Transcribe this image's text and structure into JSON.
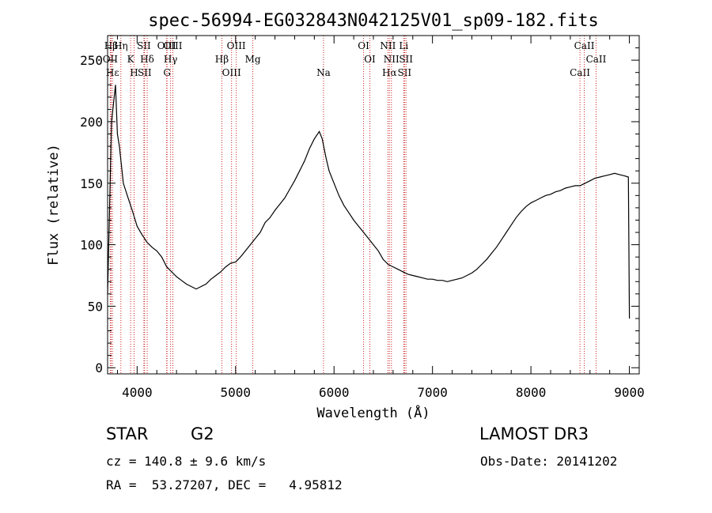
{
  "chart_data": {
    "type": "line",
    "title": "spec-56994-EG032843N042125V01_sp09-182.fits",
    "xlabel": "Wavelength (Å)",
    "ylabel": "Flux (relative)",
    "xlim": [
      3700,
      9100
    ],
    "ylim": [
      -5,
      270
    ],
    "xticks": [
      4000,
      5000,
      6000,
      7000,
      8000,
      9000
    ],
    "yticks": [
      0,
      50,
      100,
      150,
      200,
      250
    ],
    "grid": false,
    "legend": "none",
    "series": [
      {
        "color": "#000000",
        "x": [
          3700,
          3720,
          3740,
          3760,
          3780,
          3800,
          3820,
          3840,
          3860,
          3880,
          3900,
          3950,
          4000,
          4050,
          4100,
          4150,
          4200,
          4250,
          4300,
          4350,
          4400,
          4450,
          4500,
          4550,
          4600,
          4650,
          4700,
          4750,
          4800,
          4850,
          4900,
          4950,
          5000,
          5050,
          5100,
          5150,
          5200,
          5250,
          5300,
          5350,
          5400,
          5450,
          5500,
          5550,
          5600,
          5650,
          5700,
          5750,
          5800,
          5850,
          5880,
          5900,
          5920,
          5950,
          6000,
          6050,
          6100,
          6150,
          6200,
          6250,
          6300,
          6350,
          6400,
          6450,
          6500,
          6550,
          6600,
          6650,
          6700,
          6750,
          6800,
          6850,
          6900,
          6950,
          7000,
          7050,
          7100,
          7150,
          7200,
          7250,
          7300,
          7350,
          7400,
          7450,
          7500,
          7550,
          7600,
          7650,
          7700,
          7750,
          7800,
          7850,
          7900,
          7950,
          8000,
          8050,
          8100,
          8150,
          8200,
          8250,
          8300,
          8350,
          8400,
          8450,
          8500,
          8550,
          8600,
          8650,
          8700,
          8750,
          8800,
          8850,
          8900,
          8950,
          8990,
          9000
        ],
        "y": [
          60,
          130,
          200,
          215,
          230,
          190,
          180,
          165,
          150,
          145,
          140,
          128,
          115,
          108,
          102,
          98,
          95,
          90,
          82,
          78,
          74,
          71,
          68,
          66,
          64,
          66,
          68,
          72,
          75,
          78,
          82,
          85,
          86,
          90,
          95,
          100,
          105,
          110,
          118,
          122,
          128,
          133,
          138,
          145,
          152,
          160,
          168,
          178,
          186,
          192,
          186,
          178,
          170,
          160,
          150,
          140,
          132,
          126,
          120,
          115,
          110,
          105,
          100,
          95,
          88,
          84,
          82,
          80,
          78,
          76,
          75,
          74,
          73,
          72,
          72,
          71,
          71,
          70,
          71,
          72,
          73,
          75,
          77,
          80,
          84,
          88,
          93,
          98,
          104,
          110,
          116,
          122,
          127,
          131,
          134,
          136,
          138,
          140,
          141,
          143,
          144,
          146,
          147,
          148,
          148,
          150,
          152,
          154,
          155,
          156,
          157,
          158,
          157,
          156,
          155,
          40
        ]
      }
    ],
    "lines": [
      {
        "name": "Hβ",
        "x": 3736
      },
      {
        "name": "OII",
        "x": 3727
      },
      {
        "name": "Hε",
        "x": 3750
      },
      {
        "name": "Hη",
        "x": 3835
      },
      {
        "name": "K",
        "x": 3934
      },
      {
        "name": "H",
        "x": 3969
      },
      {
        "name": "SII",
        "x": 4069
      },
      {
        "name": "Hδ",
        "x": 4102
      },
      {
        "name": "SII",
        "x": 4076
      },
      {
        "name": "OIII",
        "x": 4300
      },
      {
        "name": "Hγ",
        "x": 4340
      },
      {
        "name": "G",
        "x": 4304
      },
      {
        "name": "OIII",
        "x": 4363
      },
      {
        "name": "Hβ",
        "x": 4861
      },
      {
        "name": "OIII",
        "x": 4959
      },
      {
        "name": "OIII",
        "x": 5007
      },
      {
        "name": "Mg",
        "x": 5175
      },
      {
        "name": "Na",
        "x": 5893
      },
      {
        "name": "OI",
        "x": 6300
      },
      {
        "name": "OI",
        "x": 6364
      },
      {
        "name": "Hα",
        "x": 6563
      },
      {
        "name": "NII",
        "x": 6548
      },
      {
        "name": "NII",
        "x": 6583
      },
      {
        "name": "SII",
        "x": 6716
      },
      {
        "name": "Li",
        "x": 6708
      },
      {
        "name": "SII",
        "x": 6731
      },
      {
        "name": "CaII",
        "x": 8498
      },
      {
        "name": "CaII",
        "x": 8542
      },
      {
        "name": "CaII",
        "x": 8662
      }
    ]
  },
  "info": {
    "class": "STAR",
    "subclass": "G2",
    "survey": "LAMOST DR3",
    "cz": "cz = 140.8 ± 9.6 km/s",
    "obsdate": "Obs-Date: 20141202",
    "radec": "RA =  53.27207, DEC =   4.95812"
  }
}
